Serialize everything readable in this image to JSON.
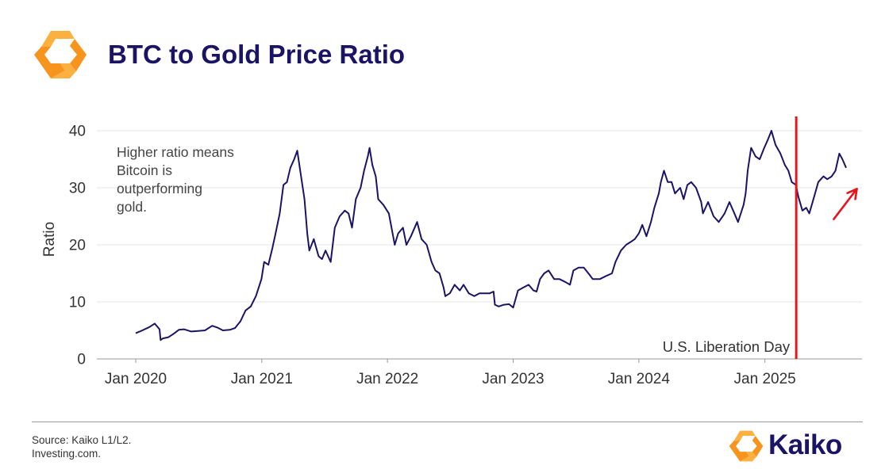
{
  "header": {
    "title": "BTC to Gold Price Ratio",
    "logo_icon": "kaiko-hexagon-logo-icon"
  },
  "colors": {
    "title": "#1b1464",
    "line": "#1b1464",
    "event_line": "#e8141c",
    "arrow": "#e8141c",
    "logo_orange": "#f7941d",
    "logo_yellow": "#fbb040"
  },
  "chart_data": {
    "type": "line",
    "title": "BTC to Gold Price Ratio",
    "xlabel": "",
    "ylabel": "Ratio",
    "ylim": [
      0,
      40
    ],
    "yticks": [
      0,
      10,
      20,
      30,
      40
    ],
    "ytick_labels": [
      "0",
      "10",
      "20",
      "30",
      "40"
    ],
    "xlim": [
      "2019-09-10",
      "2025-10-10"
    ],
    "xticks": [
      "2020-01-01",
      "2021-01-01",
      "2022-01-01",
      "2023-01-01",
      "2024-01-01",
      "2025-01-01"
    ],
    "xtick_labels": [
      "Jan 2020",
      "Jan 2021",
      "Jan 2022",
      "Jan 2023",
      "Jan 2024",
      "Jan 2025"
    ],
    "grid": "horizontal",
    "annotation": "Higher ratio means Bitcoin is outperforming gold.",
    "annotation_lines": [
      "Higher ratio means",
      "Bitcoin is",
      "outperforming",
      "gold."
    ],
    "event": {
      "label": "U.S. Liberation Day",
      "x": "2025-04-02"
    },
    "trend_arrow": {
      "from": [
        "2025-07-20",
        24.5
      ],
      "to": [
        "2025-09-25",
        29.8
      ]
    },
    "series": [
      {
        "x": [
          "2020-01-01",
          "2020-01-20",
          "2020-02-10",
          "2020-02-25",
          "2020-03-10",
          "2020-03-13",
          "2020-03-20",
          "2020-04-05",
          "2020-04-20",
          "2020-05-05",
          "2020-05-20",
          "2020-06-10",
          "2020-06-30",
          "2020-07-20",
          "2020-08-10",
          "2020-08-25",
          "2020-09-10",
          "2020-09-30",
          "2020-10-15",
          "2020-10-31",
          "2020-11-15",
          "2020-11-30",
          "2020-12-15",
          "2020-12-31",
          "2021-01-08",
          "2021-01-20",
          "2021-02-01",
          "2021-02-10",
          "2021-02-22",
          "2021-03-05",
          "2021-03-15",
          "2021-03-25",
          "2021-04-05",
          "2021-04-14",
          "2021-04-25",
          "2021-05-05",
          "2021-05-13",
          "2021-05-19",
          "2021-06-01",
          "2021-06-15",
          "2021-06-25",
          "2021-07-05",
          "2021-07-20",
          "2021-08-01",
          "2021-08-15",
          "2021-08-30",
          "2021-09-10",
          "2021-09-20",
          "2021-10-01",
          "2021-10-15",
          "2021-10-25",
          "2021-11-05",
          "2021-11-10",
          "2021-11-18",
          "2021-11-28",
          "2021-12-05",
          "2021-12-20",
          "2022-01-05",
          "2022-01-22",
          "2022-02-01",
          "2022-02-15",
          "2022-02-25",
          "2022-03-10",
          "2022-03-28",
          "2022-04-10",
          "2022-04-25",
          "2022-05-09",
          "2022-05-20",
          "2022-06-01",
          "2022-06-13",
          "2022-06-18",
          "2022-07-01",
          "2022-07-15",
          "2022-07-30",
          "2022-08-10",
          "2022-08-25",
          "2022-09-10",
          "2022-09-25",
          "2022-10-10",
          "2022-10-25",
          "2022-11-05",
          "2022-11-09",
          "2022-11-20",
          "2022-12-05",
          "2022-12-20",
          "2023-01-01",
          "2023-01-15",
          "2023-01-30",
          "2023-02-15",
          "2023-03-01",
          "2023-03-10",
          "2023-03-20",
          "2023-04-01",
          "2023-04-14",
          "2023-04-30",
          "2023-05-15",
          "2023-06-01",
          "2023-06-15",
          "2023-06-25",
          "2023-07-10",
          "2023-07-25",
          "2023-08-10",
          "2023-08-20",
          "2023-09-10",
          "2023-09-30",
          "2023-10-15",
          "2023-10-25",
          "2023-11-10",
          "2023-11-25",
          "2023-12-08",
          "2023-12-20",
          "2024-01-01",
          "2024-01-11",
          "2024-01-23",
          "2024-02-05",
          "2024-02-15",
          "2024-02-28",
          "2024-03-05",
          "2024-03-14",
          "2024-03-25",
          "2024-04-05",
          "2024-04-15",
          "2024-04-30",
          "2024-05-10",
          "2024-05-21",
          "2024-06-01",
          "2024-06-15",
          "2024-06-30",
          "2024-07-05",
          "2024-07-20",
          "2024-08-05",
          "2024-08-20",
          "2024-09-06",
          "2024-09-20",
          "2024-10-01",
          "2024-10-15",
          "2024-10-31",
          "2024-11-06",
          "2024-11-12",
          "2024-11-22",
          "2024-12-05",
          "2024-12-17",
          "2024-12-30",
          "2025-01-10",
          "2025-01-20",
          "2025-02-01",
          "2025-02-15",
          "2025-02-28",
          "2025-03-10",
          "2025-03-20",
          "2025-04-01",
          "2025-04-08",
          "2025-04-20",
          "2025-05-01",
          "2025-05-10",
          "2025-05-22",
          "2025-06-05",
          "2025-06-20",
          "2025-07-01",
          "2025-07-14",
          "2025-07-25",
          "2025-08-05",
          "2025-08-14",
          "2025-08-25"
        ],
        "y": [
          4.5,
          5.0,
          5.6,
          6.2,
          5.2,
          3.3,
          3.6,
          3.8,
          4.4,
          5.1,
          5.2,
          4.8,
          4.9,
          5.0,
          5.8,
          5.5,
          5.0,
          5.1,
          5.4,
          6.6,
          8.5,
          9.2,
          11.0,
          14.0,
          17.0,
          16.5,
          19.5,
          22.0,
          25.5,
          30.5,
          31.0,
          33.5,
          35.0,
          36.5,
          32.0,
          28.0,
          22.0,
          19.0,
          21.0,
          18.0,
          17.5,
          19.0,
          17.0,
          23.0,
          25.0,
          26.0,
          25.5,
          23.0,
          28.0,
          30.0,
          33.0,
          35.5,
          37.0,
          34.0,
          32.0,
          28.0,
          27.0,
          25.5,
          20.0,
          22.0,
          23.0,
          20.0,
          21.5,
          24.0,
          21.0,
          20.0,
          17.0,
          15.5,
          15.0,
          12.5,
          11.0,
          11.5,
          13.0,
          12.0,
          13.0,
          11.5,
          11.0,
          11.5,
          11.5,
          11.5,
          11.8,
          9.5,
          9.2,
          9.5,
          9.6,
          9.0,
          12.0,
          12.5,
          13.0,
          12.0,
          11.8,
          14.0,
          15.0,
          15.5,
          14.0,
          14.0,
          13.5,
          13.0,
          15.5,
          16.0,
          16.0,
          14.8,
          14.0,
          14.0,
          14.6,
          15.0,
          17.0,
          19.0,
          20.0,
          20.5,
          21.0,
          22.0,
          23.5,
          21.5,
          24.0,
          26.5,
          29.0,
          31.0,
          33.0,
          31.0,
          31.0,
          29.0,
          30.0,
          28.0,
          30.5,
          31.0,
          30.0,
          27.5,
          25.5,
          27.5,
          25.0,
          24.0,
          25.5,
          27.5,
          26.0,
          24.0,
          27.0,
          29.0,
          33.0,
          37.0,
          35.5,
          35.0,
          37.0,
          38.5,
          40.0,
          37.5,
          36.0,
          34.0,
          33.0,
          31.0,
          30.5,
          28.5,
          26.0,
          26.5,
          25.5,
          28.0,
          31.0,
          32.0,
          31.5,
          32.0,
          33.0,
          36.0,
          35.0,
          33.5
        ]
      }
    ]
  },
  "footer": {
    "source_lines": [
      "Source: Kaiko L1/L2.",
      "Investing.com."
    ],
    "brand_name": "Kaiko",
    "brand_icon": "kaiko-hexagon-logo-icon"
  }
}
